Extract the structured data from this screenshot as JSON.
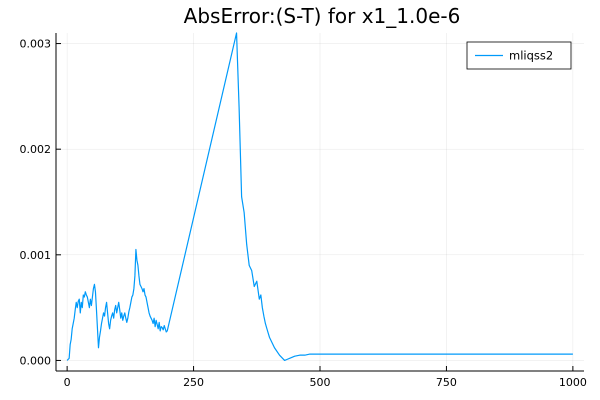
{
  "chart_data": {
    "type": "line",
    "title": "AbsError:(S-T) for x1_1.0e-6",
    "xlabel": "",
    "ylabel": "",
    "xlim": [
      -22,
      1022
    ],
    "ylim": [
      -0.0001,
      0.0031
    ],
    "xticks": [
      0,
      250,
      500,
      750,
      1000
    ],
    "xtick_labels": [
      "0",
      "250",
      "500",
      "750",
      "1000"
    ],
    "yticks": [
      0.0,
      0.001,
      0.002,
      0.003
    ],
    "ytick_labels": [
      "0.000",
      "0.001",
      "0.002",
      "0.003"
    ],
    "grid": true,
    "legend_position": "top-right",
    "series": [
      {
        "name": "mliqss2",
        "color": "#009AFA",
        "x": [
          0,
          2,
          4,
          6,
          8,
          10,
          12,
          14,
          16,
          18,
          20,
          22,
          24,
          26,
          28,
          30,
          32,
          34,
          36,
          38,
          40,
          42,
          44,
          46,
          48,
          50,
          52,
          54,
          56,
          58,
          60,
          62,
          64,
          66,
          68,
          70,
          72,
          74,
          76,
          78,
          80,
          82,
          84,
          86,
          88,
          90,
          92,
          94,
          96,
          98,
          100,
          102,
          104,
          106,
          108,
          110,
          112,
          114,
          116,
          118,
          120,
          122,
          124,
          126,
          128,
          130,
          132,
          134,
          136,
          138,
          140,
          142,
          144,
          146,
          148,
          150,
          152,
          154,
          156,
          158,
          160,
          162,
          164,
          166,
          168,
          170,
          172,
          174,
          176,
          178,
          180,
          182,
          184,
          186,
          188,
          190,
          192,
          194,
          196,
          198,
          335,
          340,
          345,
          350,
          355,
          360,
          365,
          370,
          375,
          380,
          383,
          386,
          389,
          392,
          395,
          400,
          410,
          420,
          430,
          435,
          440,
          450,
          460,
          470,
          480,
          500,
          550,
          600,
          700,
          800,
          900,
          1000
        ],
        "y": [
          0.0,
          1e-05,
          2e-05,
          0.00015,
          0.0002,
          0.0003,
          0.00035,
          0.0004,
          0.00048,
          0.00055,
          0.0005,
          0.00056,
          0.00058,
          0.00045,
          0.00055,
          0.0005,
          0.00062,
          0.0006,
          0.00065,
          0.00062,
          0.0006,
          0.00055,
          0.0005,
          0.00058,
          0.00052,
          0.0006,
          0.00068,
          0.00072,
          0.00065,
          0.00048,
          0.0003,
          0.00012,
          0.00022,
          0.00028,
          0.00035,
          0.0004,
          0.00045,
          0.00042,
          0.0005,
          0.00055,
          0.00045,
          0.00035,
          0.0003,
          0.00038,
          0.00042,
          0.00045,
          0.0004,
          0.00048,
          0.00052,
          0.00045,
          0.0005,
          0.00055,
          0.00048,
          0.0004,
          0.00045,
          0.00038,
          0.00042,
          0.00045,
          0.0004,
          0.00036,
          0.0004,
          0.00046,
          0.0005,
          0.00055,
          0.0006,
          0.00062,
          0.00068,
          0.0008,
          0.00105,
          0.00095,
          0.0009,
          0.0008,
          0.00072,
          0.0007,
          0.00068,
          0.00065,
          0.00068,
          0.00062,
          0.0006,
          0.00055,
          0.0005,
          0.00045,
          0.00042,
          0.0004,
          0.00038,
          0.00035,
          0.0004,
          0.00032,
          0.00038,
          0.00034,
          0.0003,
          0.00036,
          0.00028,
          0.00032,
          0.00031,
          0.00029,
          0.00033,
          0.0003,
          0.00027,
          0.00028,
          0.0031,
          0.0024,
          0.00155,
          0.0014,
          0.0011,
          0.0009,
          0.00085,
          0.0007,
          0.00075,
          0.00058,
          0.00062,
          0.0005,
          0.00042,
          0.00035,
          0.0003,
          0.00022,
          0.00012,
          5e-05,
          0.0,
          1e-05,
          2e-05,
          4e-05,
          5e-05,
          5e-05,
          6e-05,
          6e-05,
          6e-05,
          6e-05,
          6e-05,
          6e-05,
          6e-05,
          6e-05
        ]
      }
    ]
  }
}
